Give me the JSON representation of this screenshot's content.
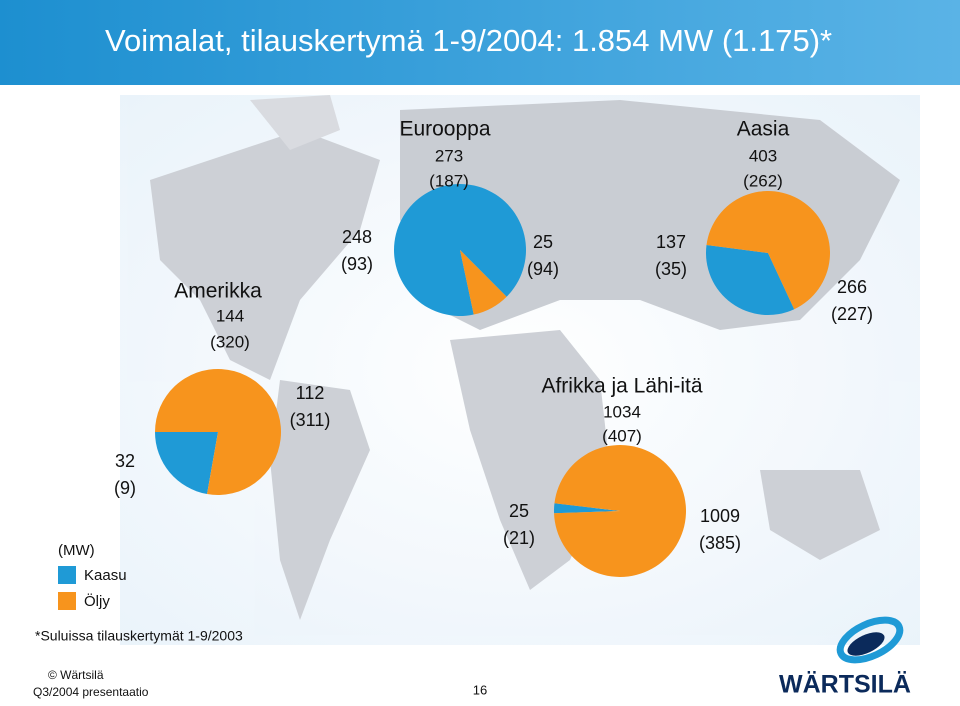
{
  "title": "Voimalat, tilauskertymä 1-9/2004: 1.854 MW (1.175)*",
  "unit": "(MW)",
  "legend": [
    {
      "name": "Kaasu",
      "color": "#1f9ad6"
    },
    {
      "name": "Öljy",
      "color": "#f7941d"
    }
  ],
  "footnote": "*Suluissa tilauskertymät 1-9/2003",
  "footer": {
    "copyright": "© Wärtsilä",
    "presentation": "Q3/2004 presentaatio",
    "page": "16",
    "logo": "WÄRTSILÄ"
  },
  "chart_data": [
    {
      "type": "pie",
      "title": "Amerikka",
      "total": 144,
      "previous_total": "(320)",
      "categories": [
        "Kaasu",
        "Öljy"
      ],
      "values": [
        32,
        112
      ],
      "previous_labels": [
        "(9)",
        "(311)"
      ],
      "colors": [
        "#1f9ad6",
        "#f7941d"
      ]
    },
    {
      "type": "pie",
      "title": "Eurooppa",
      "total": 273,
      "previous_total": "(187)",
      "categories": [
        "Kaasu",
        "Öljy"
      ],
      "values": [
        248,
        25
      ],
      "previous_labels": [
        "(93)",
        "(94)"
      ],
      "colors": [
        "#1f9ad6",
        "#f7941d"
      ]
    },
    {
      "type": "pie",
      "title": "Aasia",
      "total": 403,
      "previous_total": "(262)",
      "categories": [
        "Kaasu",
        "Öljy"
      ],
      "values": [
        137,
        266
      ],
      "previous_labels": [
        "(35)",
        "(227)"
      ],
      "colors": [
        "#1f9ad6",
        "#f7941d"
      ]
    },
    {
      "type": "pie",
      "title": "Afrikka ja Lähi-itä",
      "total": 1034,
      "previous_total": "(407)",
      "categories": [
        "Kaasu",
        "Öljy"
      ],
      "values": [
        25,
        1009
      ],
      "previous_labels": [
        "(21)",
        "(385)"
      ],
      "colors": [
        "#1f9ad6",
        "#f7941d"
      ]
    }
  ]
}
